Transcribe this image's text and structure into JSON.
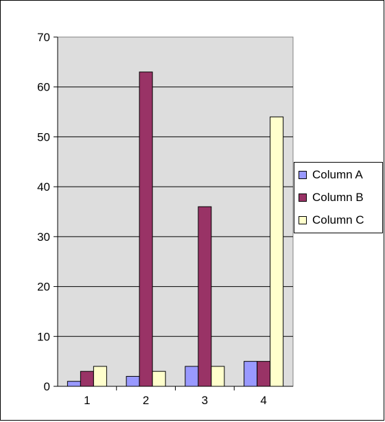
{
  "chart_data": {
    "type": "bar",
    "title": "",
    "xlabel": "",
    "ylabel": "",
    "categories": [
      "1",
      "2",
      "3",
      "4"
    ],
    "series": [
      {
        "name": "Column A",
        "color": "#9999FF",
        "values": [
          1,
          2,
          4,
          5
        ]
      },
      {
        "name": "Column B",
        "color": "#993366",
        "values": [
          3,
          63,
          36,
          5
        ]
      },
      {
        "name": "Column C",
        "color": "#FFFFCC",
        "values": [
          4,
          3,
          4,
          54
        ]
      }
    ],
    "ylim": [
      0,
      70
    ],
    "yticks": [
      "0",
      "10",
      "20",
      "30",
      "40",
      "50",
      "60",
      "70"
    ],
    "grid": true,
    "plot_background": "#DDDDDD",
    "legend_position": "right"
  }
}
